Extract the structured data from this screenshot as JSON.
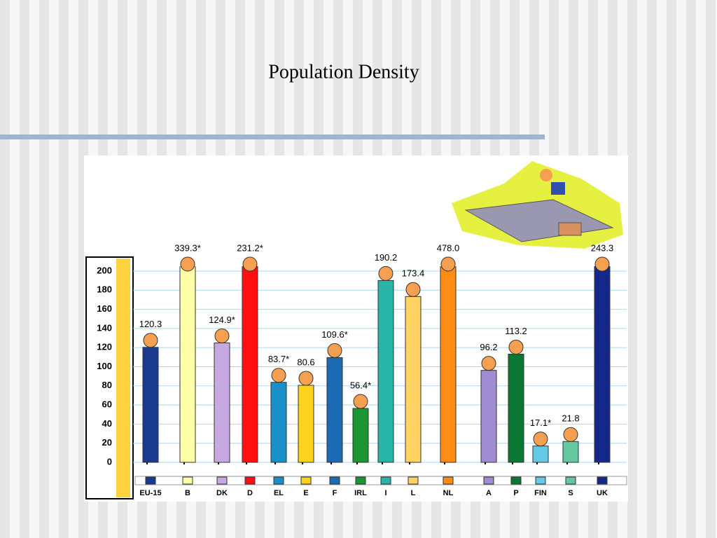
{
  "chart_data": {
    "type": "bar",
    "title": "Population Density",
    "categories": [
      "EU-15",
      "B",
      "DK",
      "D",
      "EL",
      "E",
      "F",
      "IRL",
      "I",
      "L",
      "NL",
      "A",
      "P",
      "FIN",
      "S",
      "UK"
    ],
    "values": [
      120.3,
      339.3,
      124.9,
      231.2,
      83.7,
      80.6,
      109.6,
      56.4,
      190.2,
      173.4,
      478.0,
      96.2,
      113.2,
      17.1,
      21.8,
      243.3
    ],
    "value_labels": [
      "120.3",
      "339.3*",
      "124.9*",
      "231.2*",
      "83.7*",
      "80.6",
      "109.6*",
      "56.4*",
      "190.2",
      "173.4",
      "478.0",
      "96.2",
      "113.2",
      "17.1*",
      "21.8",
      "243.3"
    ],
    "colors": [
      "#1a3a8f",
      "#ffffa8",
      "#c8a8e0",
      "#ff1010",
      "#1a8fc8",
      "#ffd21e",
      "#1a6ab4",
      "#1a9632",
      "#28b4a8",
      "#ffd264",
      "#ff8c14",
      "#a08cd2",
      "#0a7832",
      "#64c8e6",
      "#64c8a0",
      "#14288c"
    ],
    "ylim": [
      0,
      200
    ],
    "yticks": [
      0,
      20,
      40,
      60,
      80,
      100,
      120,
      140,
      160,
      180,
      200
    ],
    "grid": true
  }
}
